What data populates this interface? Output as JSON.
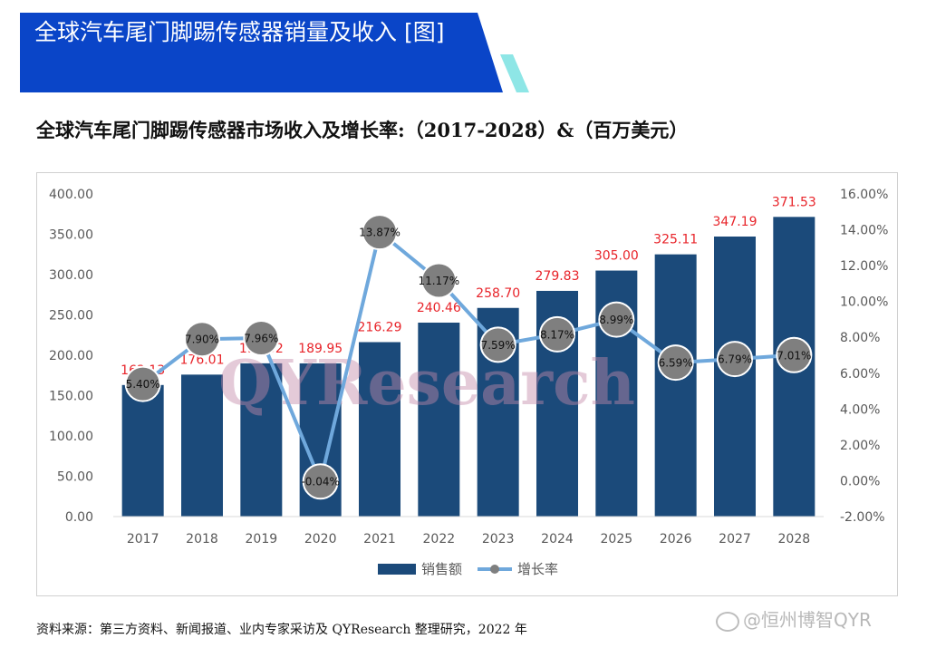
{
  "header": {
    "banner_title": "全球汽车尾门脚踢传感器销量及收入 [图]",
    "chart_title": "全球汽车尾门脚踢传感器市场收入及增长率:（2017-2028）&（百万美元）",
    "source_note": "资料来源：第三方资料、新闻报道、业内专家采访及 QYResearch 整理研究，2022 年",
    "corner_watermark": "@恒州博智QYR",
    "chart_watermark": "QYResearch"
  },
  "colors": {
    "banner": "#0a45c8",
    "accent_stripe": "#8ee6e6",
    "bar": "#1b4a7a",
    "line": "#6fa8dc",
    "marker": "#7f7f7f",
    "bar_label": "#e8242a",
    "axis_text": "#595959"
  },
  "chart_data": {
    "type": "bar",
    "categories": [
      "2017",
      "2018",
      "2019",
      "2020",
      "2021",
      "2022",
      "2023",
      "2024",
      "2025",
      "2026",
      "2027",
      "2028"
    ],
    "series": [
      {
        "name": "销售额",
        "type": "bar",
        "axis": "left",
        "values": [
          163.13,
          176.01,
          190.02,
          189.95,
          216.29,
          240.46,
          258.7,
          279.83,
          305.0,
          325.11,
          347.19,
          371.53
        ],
        "labels": [
          "163.13",
          "176.01",
          "190.02",
          "189.95",
          "216.29",
          "240.46",
          "258.70",
          "279.83",
          "305.00",
          "325.11",
          "347.19",
          "371.53"
        ]
      },
      {
        "name": "增长率",
        "type": "line",
        "axis": "right",
        "values": [
          5.4,
          7.9,
          7.96,
          -0.04,
          13.87,
          11.17,
          7.59,
          8.17,
          8.99,
          6.59,
          6.79,
          7.01
        ],
        "labels": [
          "5.40%",
          "7.90%",
          "7.96%",
          "-0.04%",
          "13.87%",
          "11.17%",
          "7.59%",
          "8.17%",
          "8.99%",
          "6.59%",
          "6.79%",
          "7.01%"
        ]
      }
    ],
    "y_left": {
      "lim": [
        0,
        400
      ],
      "ticks": [
        0,
        50,
        100,
        150,
        200,
        250,
        300,
        350,
        400
      ],
      "tick_labels": [
        "0.00",
        "50.00",
        "100.00",
        "150.00",
        "200.00",
        "250.00",
        "300.00",
        "350.00",
        "400.00"
      ]
    },
    "y_right": {
      "lim": [
        -2,
        16
      ],
      "ticks": [
        -2,
        0,
        2,
        4,
        6,
        8,
        10,
        12,
        14,
        16
      ],
      "tick_labels": [
        "-2.00%",
        "0.00%",
        "2.00%",
        "4.00%",
        "6.00%",
        "8.00%",
        "10.00%",
        "12.00%",
        "14.00%",
        "16.00%"
      ]
    },
    "grid": false,
    "legend": "bottom-center"
  }
}
